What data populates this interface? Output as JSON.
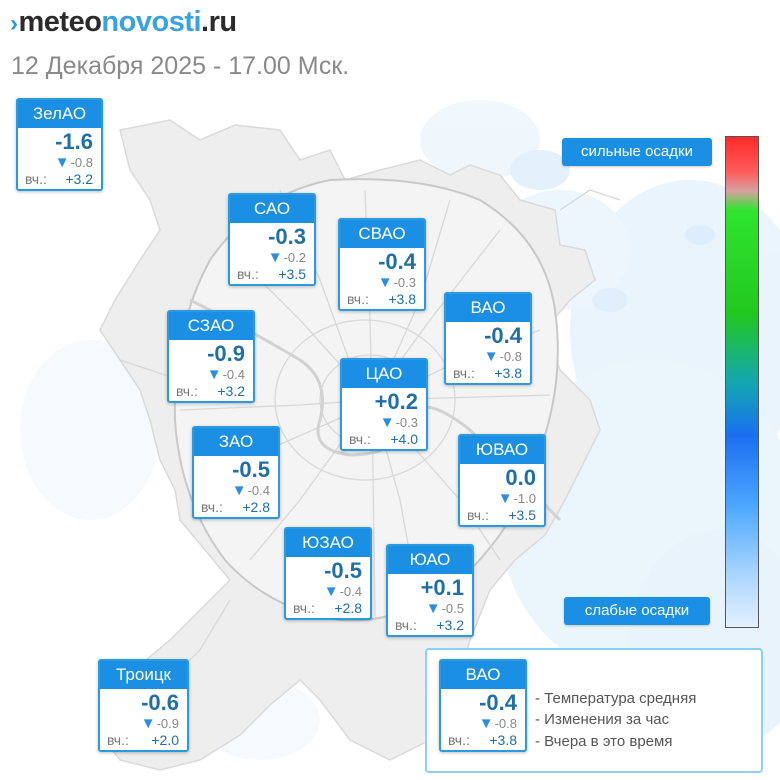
{
  "header": {
    "logo_mark": "›",
    "logo_part1": "meteo",
    "logo_part2": "novosti",
    "logo_part3": ".ru",
    "datetime": "12 Декабря 2025 - 17.00 Мск."
  },
  "icons": {
    "change_down": "down-triangle-icon"
  },
  "colors": {
    "card_header": "#1a8fe3",
    "card_border": "#2a9be0",
    "temp_text": "#1f6fa8",
    "rain_strong": "#ff2a2a",
    "rain_mid": "#22c81f",
    "rain_weak": "#e3f1ff"
  },
  "districts": [
    {
      "name": "ЗелАО",
      "temp": "-1.6",
      "change": "-0.8",
      "yesterday_label": "вч.:",
      "yesterday": "+3.2"
    },
    {
      "name": "САО",
      "temp": "-0.3",
      "change": "-0.2",
      "yesterday_label": "вч.:",
      "yesterday": "+3.5"
    },
    {
      "name": "СВАО",
      "temp": "-0.4",
      "change": "-0.3",
      "yesterday_label": "вч.:",
      "yesterday": "+3.8"
    },
    {
      "name": "ВАО",
      "temp": "-0.4",
      "change": "-0.8",
      "yesterday_label": "вч.:",
      "yesterday": "+3.8"
    },
    {
      "name": "СЗАО",
      "temp": "-0.9",
      "change": "-0.4",
      "yesterday_label": "вч.:",
      "yesterday": "+3.2"
    },
    {
      "name": "ЦАО",
      "temp": "+0.2",
      "change": "-0.3",
      "yesterday_label": "вч.:",
      "yesterday": "+4.0"
    },
    {
      "name": "ЗАО",
      "temp": "-0.5",
      "change": "-0.4",
      "yesterday_label": "вч.:",
      "yesterday": "+2.8"
    },
    {
      "name": "ЮВАО",
      "temp": "0.0",
      "change": "-1.0",
      "yesterday_label": "вч.:",
      "yesterday": "+3.5"
    },
    {
      "name": "ЮЗАО",
      "temp": "-0.5",
      "change": "-0.4",
      "yesterday_label": "вч.:",
      "yesterday": "+2.8"
    },
    {
      "name": "ЮАО",
      "temp": "+0.1",
      "change": "-0.5",
      "yesterday_label": "вч.:",
      "yesterday": "+3.2"
    },
    {
      "name": "Троицк",
      "temp": "-0.6",
      "change": "-0.9",
      "yesterday_label": "вч.:",
      "yesterday": "+2.0"
    }
  ],
  "precip_scale": {
    "strong_label": "сильные осадки",
    "weak_label": "слабые осадки"
  },
  "legend": {
    "example": {
      "name": "ВАО",
      "temp": "-0.4",
      "change": "-0.8",
      "yesterday_label": "вч.:",
      "yesterday": "+3.8"
    },
    "line1": "- Температура средняя",
    "line2": "- Изменения за час",
    "line3": "- Вчера в это время"
  }
}
